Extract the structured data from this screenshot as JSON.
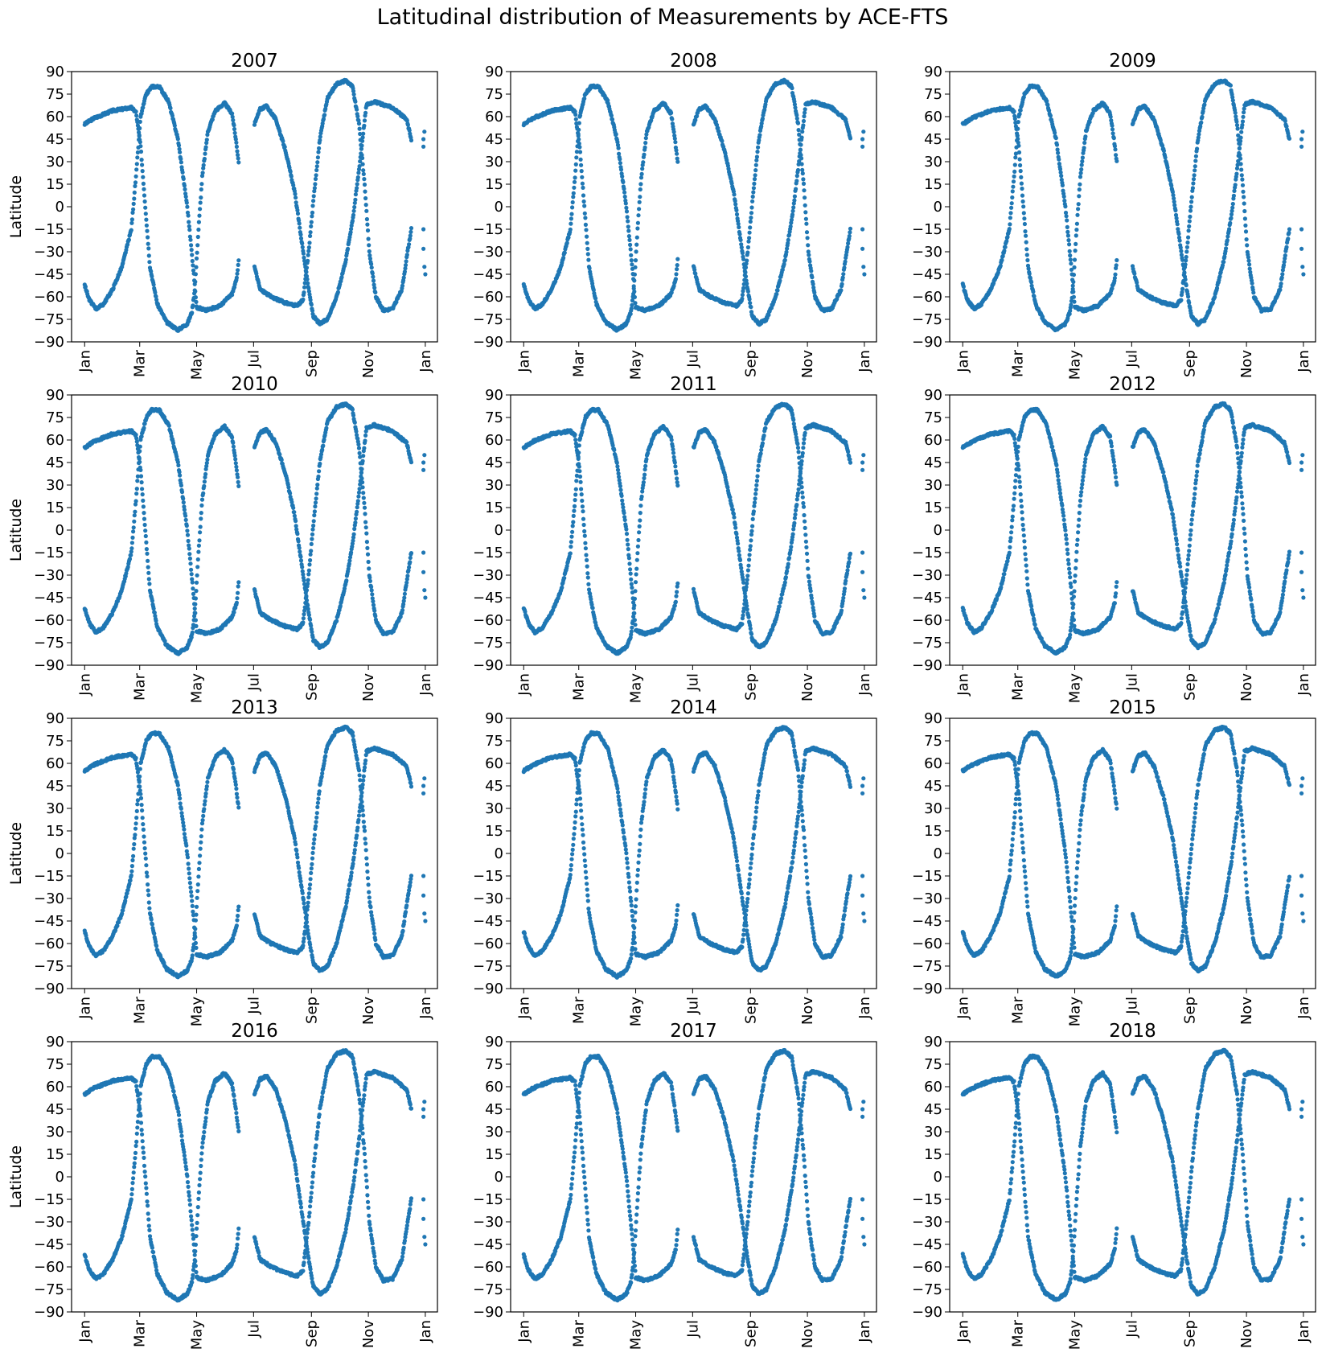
{
  "figure": {
    "title": "Latitudinal distribution of Measurements by ACE-FTS",
    "point_color": "#1f77b4"
  },
  "chart_data": {
    "type": "scatter",
    "title": "Latitudinal distribution of Measurements by ACE-FTS",
    "ylabel": "Latitude",
    "ylim": [
      -90,
      90
    ],
    "yticks": [
      -90,
      -75,
      -60,
      -45,
      -30,
      -15,
      0,
      15,
      30,
      45,
      60,
      75,
      90
    ],
    "xlabel": "",
    "xticks": [
      "Jan",
      "Mar",
      "May",
      "Jul",
      "Sep",
      "Nov",
      "Jan"
    ],
    "xtick_days": [
      0,
      59,
      120,
      181,
      243,
      304,
      365
    ],
    "xlim_days": [
      -14,
      378
    ],
    "grid": false,
    "series_color": "#1f77b4",
    "note_x_axis": "x values are day of year (0 = Jan 1)",
    "curve_keypoints": {
      "A_northern_eclipse_season_1": [
        [
          0,
          55
        ],
        [
          10,
          59
        ],
        [
          30,
          64
        ],
        [
          50,
          66
        ],
        [
          55,
          63
        ],
        [
          60,
          40
        ],
        [
          65,
          0
        ],
        [
          70,
          -40
        ],
        [
          78,
          -65
        ],
        [
          88,
          -77
        ],
        [
          100,
          -82
        ],
        [
          110,
          -78
        ],
        [
          115,
          -70
        ],
        [
          118,
          -55
        ],
        [
          122,
          -15
        ],
        [
          126,
          20
        ],
        [
          132,
          50
        ],
        [
          140,
          64
        ],
        [
          150,
          69
        ],
        [
          158,
          62
        ],
        [
          162,
          45
        ],
        [
          165,
          30
        ]
      ],
      "B_southern_eclipse_season_1": [
        [
          0,
          -52
        ],
        [
          5,
          -62
        ],
        [
          12,
          -68
        ],
        [
          20,
          -65
        ],
        [
          30,
          -55
        ],
        [
          40,
          -40
        ],
        [
          50,
          -15
        ],
        [
          55,
          20
        ],
        [
          60,
          60
        ],
        [
          66,
          75
        ],
        [
          72,
          80
        ],
        [
          80,
          80
        ],
        [
          90,
          70
        ],
        [
          100,
          45
        ],
        [
          110,
          0
        ],
        [
          117,
          -45
        ],
        [
          120,
          -67
        ],
        [
          130,
          -69
        ],
        [
          145,
          -66
        ],
        [
          158,
          -58
        ],
        [
          163,
          -48
        ],
        [
          165,
          -35
        ]
      ],
      "C_northern_eclipse_season_2": [
        [
          182,
          55
        ],
        [
          188,
          65
        ],
        [
          195,
          67
        ],
        [
          205,
          58
        ],
        [
          215,
          38
        ],
        [
          225,
          10
        ],
        [
          233,
          -25
        ],
        [
          240,
          -55
        ],
        [
          245,
          -73
        ],
        [
          252,
          -78
        ],
        [
          260,
          -75
        ],
        [
          270,
          -60
        ],
        [
          280,
          -35
        ],
        [
          288,
          -5
        ],
        [
          294,
          25
        ],
        [
          299,
          52
        ],
        [
          302,
          68
        ],
        [
          310,
          70
        ],
        [
          330,
          66
        ],
        [
          345,
          58
        ],
        [
          350,
          45
        ]
      ],
      "D_southern_eclipse_season_2": [
        [
          182,
          -40
        ],
        [
          188,
          -55
        ],
        [
          200,
          -60
        ],
        [
          215,
          -64
        ],
        [
          228,
          -66
        ],
        [
          234,
          -62
        ],
        [
          240,
          -30
        ],
        [
          246,
          10
        ],
        [
          252,
          45
        ],
        [
          260,
          72
        ],
        [
          270,
          82
        ],
        [
          280,
          84
        ],
        [
          287,
          80
        ],
        [
          294,
          55
        ],
        [
          300,
          15
        ],
        [
          305,
          -30
        ],
        [
          312,
          -60
        ],
        [
          320,
          -69
        ],
        [
          330,
          -68
        ],
        [
          340,
          -55
        ],
        [
          346,
          -30
        ],
        [
          350,
          -15
        ]
      ]
    },
    "panels": [
      {
        "year": "2007"
      },
      {
        "year": "2008"
      },
      {
        "year": "2009"
      },
      {
        "year": "2010"
      },
      {
        "year": "2011"
      },
      {
        "year": "2012"
      },
      {
        "year": "2013"
      },
      {
        "year": "2014"
      },
      {
        "year": "2015"
      },
      {
        "year": "2016"
      },
      {
        "year": "2017"
      },
      {
        "year": "2018"
      }
    ]
  }
}
